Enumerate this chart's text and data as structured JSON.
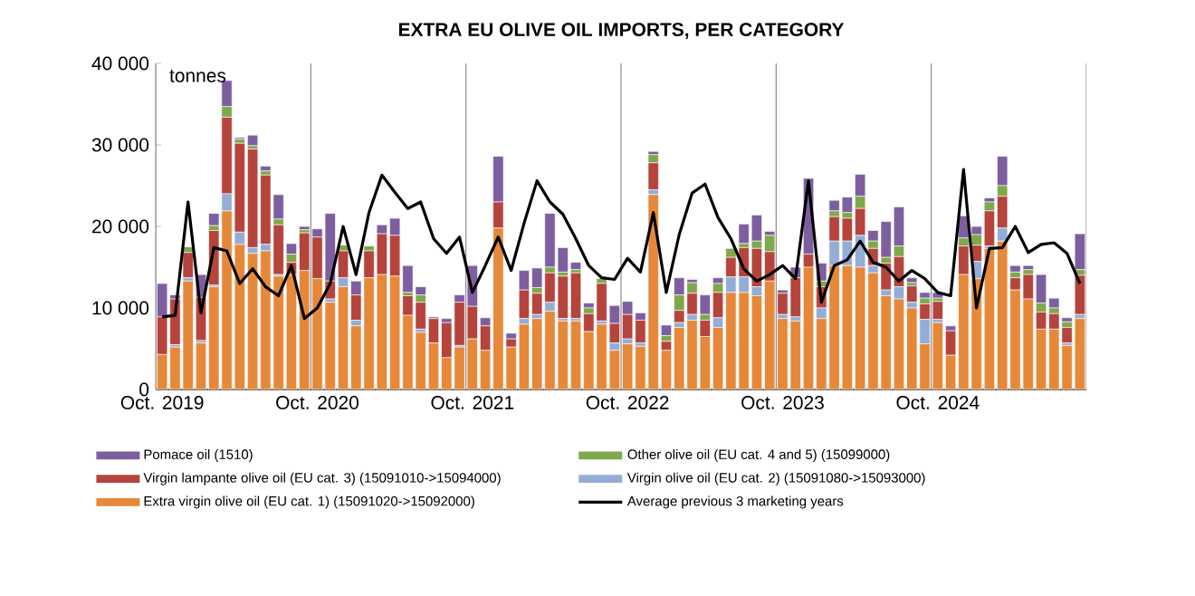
{
  "chart_data": {
    "type": "bar",
    "stacked": true,
    "title": "EXTRA EU OLIVE OIL IMPORTS, PER CATEGORY",
    "ylabel": "tonnes",
    "categories": [
      "Oct. 2019",
      null,
      null,
      null,
      null,
      null,
      null,
      null,
      null,
      null,
      null,
      null,
      "Oct. 2020",
      null,
      null,
      null,
      null,
      null,
      null,
      null,
      null,
      null,
      null,
      null,
      "Oct. 2021",
      null,
      null,
      null,
      null,
      null,
      null,
      null,
      null,
      null,
      null,
      null,
      "Oct. 2022",
      null,
      null,
      null,
      null,
      null,
      null,
      null,
      null,
      null,
      null,
      null,
      "Oct. 2023",
      null,
      null,
      null,
      null,
      null,
      null,
      null,
      null,
      null,
      null,
      null,
      "Oct. 2024",
      null,
      null,
      null,
      null,
      null,
      null,
      null,
      null,
      null,
      null,
      null
    ],
    "series": [
      {
        "name": "Extra virgin olive oil (EU cat. 1) (15091020->15092000)",
        "color": "#e6883a",
        "values": [
          4300,
          5200,
          13300,
          5700,
          12600,
          21900,
          17800,
          16700,
          17000,
          13900,
          14100,
          14600,
          13600,
          10700,
          12600,
          7800,
          13700,
          14100,
          13900,
          9100,
          7000,
          5700,
          3900,
          5200,
          6200,
          4800,
          19800,
          5200,
          8000,
          8700,
          9600,
          8400,
          8400,
          7100,
          8000,
          4800,
          5600,
          5300,
          23900,
          4800,
          7600,
          8500,
          6500,
          7600,
          11900,
          11900,
          11500,
          13300,
          8700,
          8400,
          15000,
          8700,
          15200,
          15200,
          15000,
          14300,
          11500,
          11100,
          10000,
          5600,
          8200,
          4200,
          14100,
          13600,
          17300,
          18200,
          12200,
          11100,
          7400,
          7400,
          5400,
          8700
        ]
      },
      {
        "name": "Virgin olive oil (EU cat. 2) (15091080->15093000)",
        "color": "#94add6",
        "values": [
          0,
          300,
          400,
          300,
          200,
          2100,
          1500,
          700,
          800,
          200,
          null,
          0,
          0,
          400,
          1100,
          700,
          0,
          0,
          0,
          0,
          400,
          0,
          0,
          200,
          0,
          0,
          0,
          0,
          700,
          500,
          1100,
          300,
          300,
          null,
          400,
          900,
          600,
          400,
          600,
          0,
          600,
          700,
          0,
          1200,
          1900,
          1900,
          1100,
          0,
          500,
          500,
          0,
          1300,
          3000,
          3000,
          3900,
          900,
          700,
          1500,
          700,
          3000,
          400,
          0,
          0,
          2100,
          300,
          1600,
          0,
          0,
          0,
          0,
          300,
          500
        ]
      },
      {
        "name": "Virgin lampante olive oil (EU cat. 3) (15091010->15094000)",
        "color": "#b5443d",
        "values": [
          4600,
          5600,
          3100,
          5300,
          6700,
          9400,
          10900,
          12100,
          8500,
          6100,
          1500,
          4600,
          5100,
          2200,
          3300,
          3100,
          3300,
          5000,
          5000,
          2400,
          3300,
          3000,
          4300,
          5300,
          4000,
          3000,
          3200,
          1000,
          3500,
          2600,
          3600,
          5200,
          5600,
          2200,
          4600,
          2400,
          3000,
          2800,
          3300,
          1100,
          1500,
          2600,
          2000,
          3100,
          2400,
          3600,
          4700,
          3600,
          2600,
          4800,
          1600,
          2600,
          3000,
          2800,
          3300,
          2100,
          3300,
          3700,
          2000,
          1900,
          2200,
          3000,
          3500,
          2000,
          4300,
          3900,
          1500,
          3000,
          2100,
          1900,
          1900,
          4800
        ]
      },
      {
        "name": "Other olive oil (EU cat. 4 and 5) (15099000)",
        "color": "#7fa84a",
        "values": [
          0,
          0,
          700,
          0,
          600,
          1300,
          500,
          400,
          500,
          700,
          1000,
          400,
          0,
          0,
          700,
          0,
          600,
          0,
          0,
          400,
          900,
          0,
          0,
          0,
          0,
          0,
          0,
          0,
          0,
          700,
          700,
          500,
          400,
          700,
          600,
          0,
          0,
          0,
          1000,
          700,
          1900,
          1300,
          700,
          1100,
          1100,
          500,
          900,
          2000,
          0,
          0,
          0,
          700,
          700,
          700,
          1500,
          900,
          700,
          1300,
          400,
          700,
          400,
          0,
          1000,
          1300,
          1100,
          1300,
          700,
          600,
          1100,
          700,
          700,
          700
        ]
      },
      {
        "name": "Pomace oil  (1510)",
        "color": "#7d5fa0",
        "values": [
          4100,
          500,
          0,
          2800,
          1500,
          3200,
          200,
          1300,
          600,
          3000,
          1300,
          400,
          1000,
          8300,
          null,
          1700,
          0,
          1100,
          2100,
          3300,
          1000,
          200,
          500,
          900,
          5000,
          1000,
          5600,
          700,
          2400,
          2400,
          6600,
          3000,
          900,
          600,
          null,
          2200,
          1600,
          900,
          400,
          1300,
          2100,
          400,
          2400,
          700,
          0,
          2400,
          3200,
          500,
          400,
          1300,
          9300,
          2200,
          1300,
          1900,
          2700,
          1300,
          4400,
          4800,
          600,
          700,
          700,
          600,
          2700,
          1000,
          500,
          3600,
          800,
          500,
          3500,
          1200,
          500,
          4400
        ]
      },
      {
        "name": "Average previous 3 marketing years",
        "type": "line",
        "color": "#000000",
        "values": [
          8900,
          9100,
          23000,
          9400,
          17400,
          17000,
          13000,
          14800,
          12600,
          11500,
          15200,
          8700,
          10000,
          13000,
          20000,
          14100,
          21700,
          26300,
          24200,
          22200,
          23000,
          18500,
          16700,
          18700,
          11900,
          15200,
          18700,
          14600,
          20400,
          25600,
          23000,
          21500,
          18500,
          15200,
          13700,
          13500,
          16100,
          14400,
          21700,
          11900,
          19000,
          24100,
          25200,
          21100,
          18500,
          14800,
          13300,
          14100,
          15200,
          13600,
          25600,
          10700,
          15200,
          15900,
          18200,
          15600,
          15000,
          13300,
          14600,
          13600,
          11900,
          11500,
          27000,
          10000,
          17300,
          17400,
          20000,
          16800,
          17800,
          18000,
          16700,
          13000
        ]
      }
    ],
    "ylim": [
      0,
      40000
    ],
    "yticks": [
      0,
      {
        "value": 10000,
        "label": "10 000"
      },
      {
        "value": 20000,
        "label": "20 000"
      },
      {
        "value": 30000,
        "label": "30 000"
      },
      {
        "value": 40000,
        "label": "40 000"
      }
    ],
    "grid": "x",
    "legend": "bottom"
  }
}
